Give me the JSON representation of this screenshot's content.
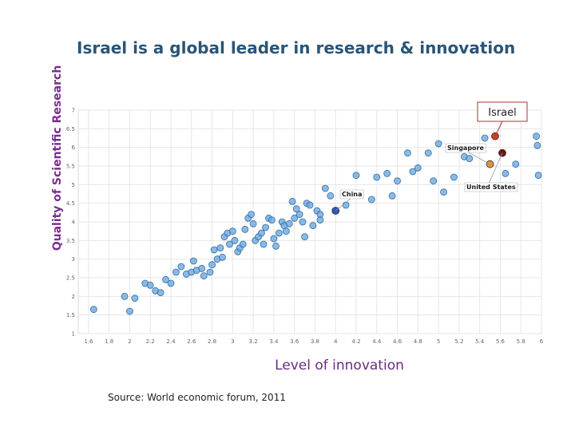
{
  "source": "Source: World economic forum, 2011",
  "chart_data": {
    "type": "scatter",
    "title": "Israel is a global leader in research & innovation",
    "xlabel": "Level of innovation",
    "ylabel": "Quality of Scientific Research",
    "xlim": [
      1.5,
      6
    ],
    "ylim": [
      1,
      7
    ],
    "grid": true,
    "x_ticks": [
      "1.6",
      "1.8",
      "2",
      "2.2",
      "2.4",
      "2.6",
      "2.8",
      "3",
      "3.2",
      "3.4",
      "3.6",
      "3.8",
      "4",
      "4.2",
      "4.4",
      "4.6",
      "4.8",
      "5",
      "5.2",
      "5.4",
      "5.6",
      "5.8",
      "6"
    ],
    "y_ticks": [
      "1",
      "1.5",
      "2",
      "2.5",
      "3",
      "3.5",
      "4",
      "4.5",
      "5",
      "5.5",
      "6",
      "6.5",
      "7"
    ],
    "colors": {
      "point": "#6fa8dc",
      "point_edge": "#2f6fa8",
      "israel": "#cc4125",
      "us": "#7a0f0f",
      "singapore": "#e69138",
      "china": "#2b58b8"
    },
    "points": [
      {
        "x": 1.65,
        "y": 1.65
      },
      {
        "x": 1.95,
        "y": 2.0
      },
      {
        "x": 2.0,
        "y": 1.6
      },
      {
        "x": 2.05,
        "y": 1.95
      },
      {
        "x": 2.15,
        "y": 2.35
      },
      {
        "x": 2.2,
        "y": 2.3
      },
      {
        "x": 2.25,
        "y": 2.15
      },
      {
        "x": 2.3,
        "y": 2.1
      },
      {
        "x": 2.35,
        "y": 2.45
      },
      {
        "x": 2.4,
        "y": 2.35
      },
      {
        "x": 2.45,
        "y": 2.65
      },
      {
        "x": 2.5,
        "y": 2.8
      },
      {
        "x": 2.55,
        "y": 2.6
      },
      {
        "x": 2.6,
        "y": 2.65
      },
      {
        "x": 2.62,
        "y": 2.95
      },
      {
        "x": 2.65,
        "y": 2.7
      },
      {
        "x": 2.7,
        "y": 2.75
      },
      {
        "x": 2.72,
        "y": 2.55
      },
      {
        "x": 2.78,
        "y": 2.65
      },
      {
        "x": 2.8,
        "y": 2.85
      },
      {
        "x": 2.82,
        "y": 3.25
      },
      {
        "x": 2.85,
        "y": 3.0
      },
      {
        "x": 2.88,
        "y": 3.3
      },
      {
        "x": 2.9,
        "y": 3.05
      },
      {
        "x": 2.92,
        "y": 3.6
      },
      {
        "x": 2.95,
        "y": 3.7
      },
      {
        "x": 2.97,
        "y": 3.4
      },
      {
        "x": 3.0,
        "y": 3.75
      },
      {
        "x": 3.02,
        "y": 3.5
      },
      {
        "x": 3.05,
        "y": 3.2
      },
      {
        "x": 3.07,
        "y": 3.3
      },
      {
        "x": 3.1,
        "y": 3.4
      },
      {
        "x": 3.12,
        "y": 3.8
      },
      {
        "x": 3.15,
        "y": 4.1
      },
      {
        "x": 3.18,
        "y": 4.2
      },
      {
        "x": 3.2,
        "y": 3.95
      },
      {
        "x": 3.22,
        "y": 3.5
      },
      {
        "x": 3.25,
        "y": 3.6
      },
      {
        "x": 3.28,
        "y": 3.7
      },
      {
        "x": 3.3,
        "y": 3.4
      },
      {
        "x": 3.32,
        "y": 3.85
      },
      {
        "x": 3.35,
        "y": 4.1
      },
      {
        "x": 3.38,
        "y": 4.05
      },
      {
        "x": 3.4,
        "y": 3.55
      },
      {
        "x": 3.42,
        "y": 3.35
      },
      {
        "x": 3.45,
        "y": 3.7
      },
      {
        "x": 3.48,
        "y": 4.0
      },
      {
        "x": 3.5,
        "y": 3.9
      },
      {
        "x": 3.52,
        "y": 3.75
      },
      {
        "x": 3.55,
        "y": 3.95
      },
      {
        "x": 3.58,
        "y": 4.55
      },
      {
        "x": 3.6,
        "y": 4.1
      },
      {
        "x": 3.62,
        "y": 4.35
      },
      {
        "x": 3.65,
        "y": 4.2
      },
      {
        "x": 3.68,
        "y": 4.0
      },
      {
        "x": 3.7,
        "y": 3.6
      },
      {
        "x": 3.72,
        "y": 4.5
      },
      {
        "x": 3.75,
        "y": 4.45
      },
      {
        "x": 3.78,
        "y": 3.9
      },
      {
        "x": 3.82,
        "y": 4.3
      },
      {
        "x": 3.85,
        "y": 4.2
      },
      {
        "x": 3.9,
        "y": 4.9
      },
      {
        "x": 3.95,
        "y": 4.7
      },
      {
        "x": 4.1,
        "y": 4.45
      },
      {
        "x": 4.2,
        "y": 5.25
      },
      {
        "x": 4.35,
        "y": 4.6
      },
      {
        "x": 4.4,
        "y": 5.2
      },
      {
        "x": 4.5,
        "y": 5.3
      },
      {
        "x": 4.55,
        "y": 4.7
      },
      {
        "x": 4.6,
        "y": 5.1
      },
      {
        "x": 4.7,
        "y": 5.85
      },
      {
        "x": 4.75,
        "y": 5.35
      },
      {
        "x": 4.8,
        "y": 5.45
      },
      {
        "x": 4.9,
        "y": 5.85
      },
      {
        "x": 4.95,
        "y": 5.1
      },
      {
        "x": 5.0,
        "y": 6.1
      },
      {
        "x": 5.05,
        "y": 4.8
      },
      {
        "x": 5.15,
        "y": 5.2
      },
      {
        "x": 5.25,
        "y": 5.75
      },
      {
        "x": 5.3,
        "y": 5.7
      },
      {
        "x": 5.45,
        "y": 6.25
      },
      {
        "x": 5.65,
        "y": 5.3
      },
      {
        "x": 5.75,
        "y": 5.55
      },
      {
        "x": 5.95,
        "y": 6.3
      },
      {
        "x": 5.96,
        "y": 6.05
      },
      {
        "x": 5.97,
        "y": 5.25
      },
      {
        "x": 3.85,
        "y": 4.05
      }
    ],
    "highlights": [
      {
        "name": "Israel",
        "x": 5.55,
        "y": 6.3,
        "color_key": "israel"
      },
      {
        "name": "Singapore",
        "x": 5.5,
        "y": 5.55,
        "color_key": "singapore"
      },
      {
        "name": "United States",
        "x": 5.62,
        "y": 5.85,
        "color_key": "us"
      },
      {
        "name": "China",
        "x": 4.0,
        "y": 4.3,
        "color_key": "china"
      }
    ],
    "annotations": [
      {
        "text": "Israel",
        "target": "Israel",
        "style": "boxed"
      },
      {
        "text": "Singapore",
        "target": "Singapore",
        "style": "callout"
      },
      {
        "text": "United States",
        "target": "United States",
        "style": "callout"
      },
      {
        "text": "China",
        "target": "China",
        "style": "callout"
      }
    ]
  }
}
